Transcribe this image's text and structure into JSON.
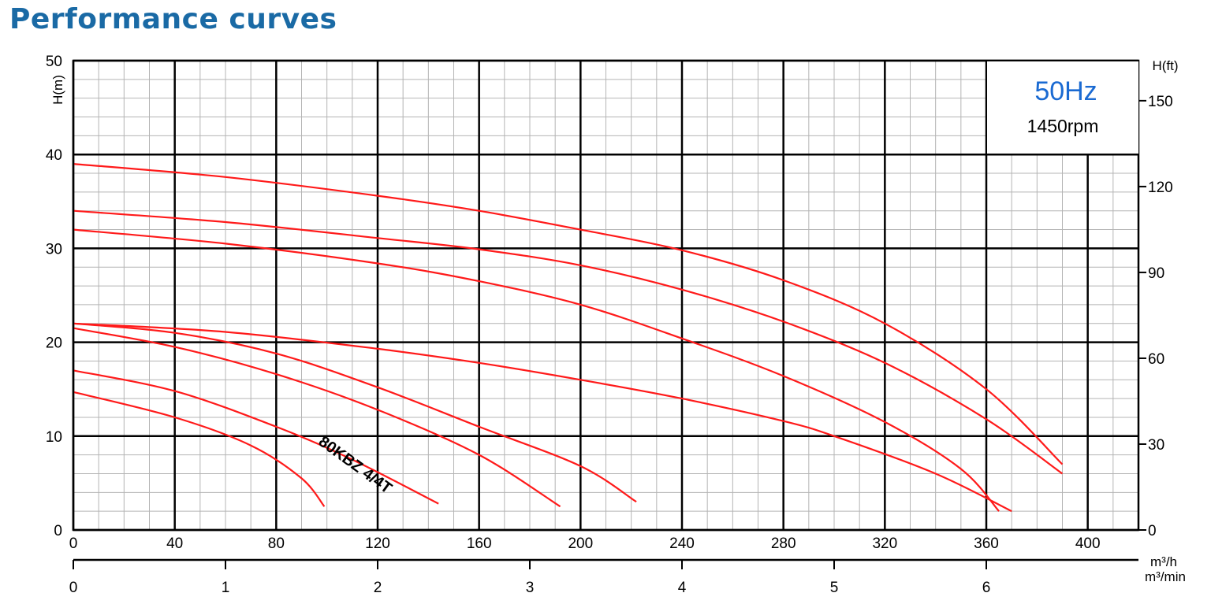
{
  "page": {
    "title": "Performance curves"
  },
  "colors": {
    "title": "#1a6aa5",
    "curve": "#ff1a1a",
    "frequency": "#1a6ad2",
    "grid_major": "#000000",
    "grid_minor": "#b4b4b4"
  },
  "chart_data": {
    "type": "line",
    "ylabel": "H(m)",
    "ylabel_right": "H(ft)",
    "xlabel": "m³/h",
    "xlabel_secondary": "m³/min",
    "xlim": [
      0,
      420
    ],
    "ylim": [
      0,
      50
    ],
    "ylim_right": [
      0,
      164
    ],
    "x_ticks": [
      "0",
      "40",
      "80",
      "120",
      "160",
      "200",
      "240",
      "280",
      "320",
      "360",
      "400"
    ],
    "y_ticks": [
      "0",
      "10",
      "20",
      "30",
      "40",
      "50"
    ],
    "y_right_ticks": [
      "0",
      "30",
      "60",
      "90",
      "120",
      "150"
    ],
    "x_secondary_ticks": [
      "0",
      "1",
      "2",
      "3",
      "4",
      "5",
      "6"
    ],
    "frequency": "50Hz",
    "speed": "1450rpm",
    "grid": true,
    "annotations": [
      {
        "text": "80KBZ 4/4T",
        "x": 110,
        "y": 6.5,
        "angle": 36
      }
    ],
    "series": [
      {
        "points": [
          [
            0,
            39
          ],
          [
            60,
            37.6
          ],
          [
            120,
            35.6
          ],
          [
            160,
            34
          ],
          [
            200,
            32
          ],
          [
            240,
            29.8
          ],
          [
            280,
            26.6
          ],
          [
            320,
            22
          ],
          [
            360,
            15
          ],
          [
            390,
            7
          ]
        ]
      },
      {
        "points": [
          [
            0,
            34
          ],
          [
            60,
            32.8
          ],
          [
            120,
            31.1
          ],
          [
            160,
            29.9
          ],
          [
            200,
            28.2
          ],
          [
            240,
            25.6
          ],
          [
            280,
            22.2
          ],
          [
            320,
            17.8
          ],
          [
            360,
            11.8
          ],
          [
            390,
            6
          ]
        ]
      },
      {
        "points": [
          [
            0,
            32
          ],
          [
            60,
            30.5
          ],
          [
            120,
            28.4
          ],
          [
            160,
            26.5
          ],
          [
            200,
            24
          ],
          [
            240,
            20.4
          ],
          [
            280,
            16.4
          ],
          [
            320,
            11.5
          ],
          [
            350,
            6.5
          ],
          [
            365,
            2
          ]
        ]
      },
      {
        "points": [
          [
            0,
            22
          ],
          [
            60,
            21.1
          ],
          [
            120,
            19.3
          ],
          [
            160,
            17.8
          ],
          [
            200,
            16
          ],
          [
            240,
            14
          ],
          [
            280,
            11.6
          ],
          [
            300,
            10
          ],
          [
            340,
            6
          ],
          [
            370,
            2
          ]
        ]
      },
      {
        "points": [
          [
            0,
            22
          ],
          [
            40,
            21
          ],
          [
            80,
            18.8
          ],
          [
            120,
            15.2
          ],
          [
            160,
            11
          ],
          [
            200,
            6.8
          ],
          [
            222,
            3
          ]
        ]
      },
      {
        "points": [
          [
            0,
            21.5
          ],
          [
            40,
            19.5
          ],
          [
            80,
            16.6
          ],
          [
            120,
            12.8
          ],
          [
            160,
            8
          ],
          [
            192,
            2.5
          ]
        ]
      },
      {
        "points": [
          [
            0,
            17
          ],
          [
            40,
            14.8
          ],
          [
            80,
            11
          ],
          [
            110,
            7.5
          ],
          [
            144,
            2.8
          ]
        ]
      },
      {
        "points": [
          [
            0,
            14.7
          ],
          [
            40,
            12
          ],
          [
            70,
            9
          ],
          [
            90,
            5.5
          ],
          [
            99,
            2.5
          ]
        ]
      }
    ]
  }
}
